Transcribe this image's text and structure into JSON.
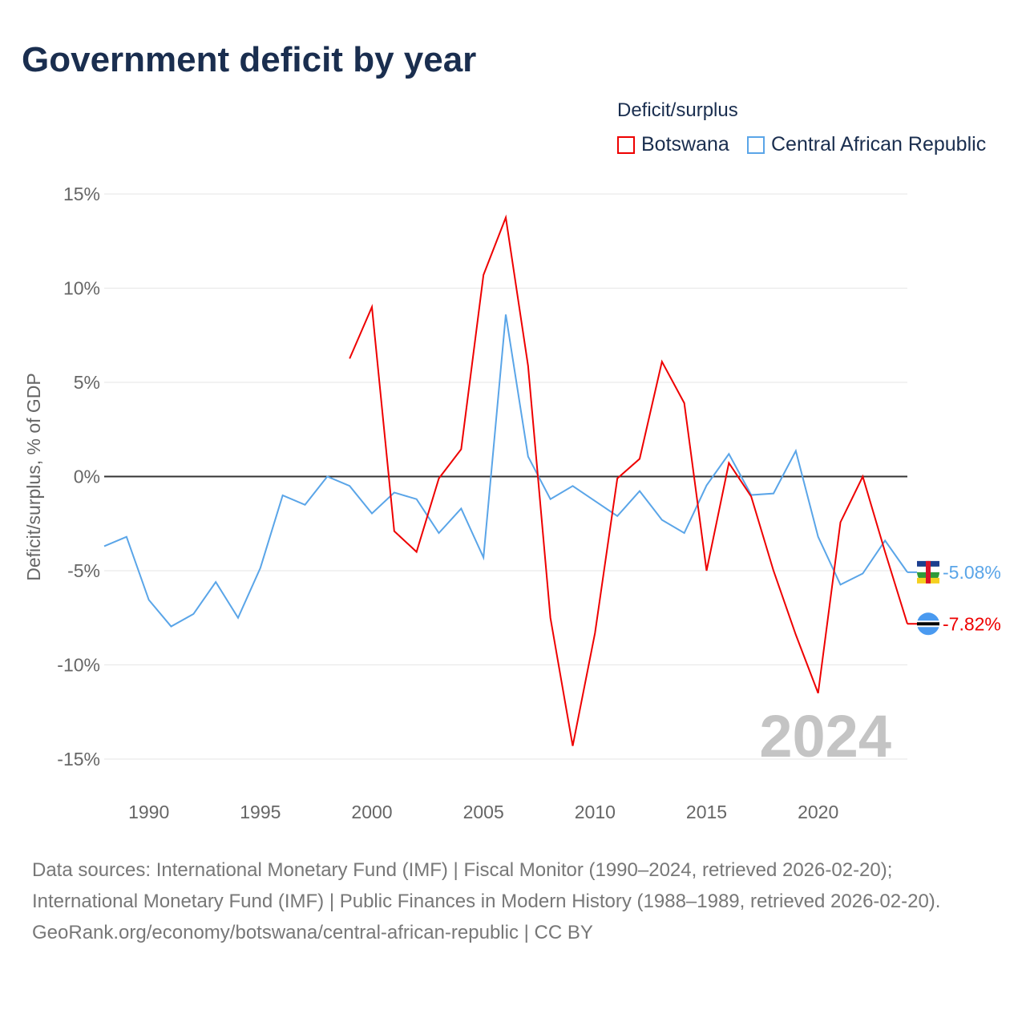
{
  "title": "Government deficit by year",
  "footer": {
    "sources": "Data sources: International Monetary Fund (IMF) | Fiscal Monitor (1990–2024, retrieved 2026-02-20); International Monetary Fund (IMF) | Public Finances in Modern History (1988–1989, retrieved 2026-02-20).",
    "credit": "GeoRank.org/economy/botswana/central-african-republic | CC BY"
  },
  "chart_data": {
    "type": "line",
    "title": "Government deficit by year",
    "ylabel": "Deficit/surplus, % of GDP",
    "xlabel": "",
    "legend_title": "Deficit/surplus",
    "legend_placement": "top-right",
    "year_watermark": "2024",
    "xlim": [
      1988,
      2024
    ],
    "ylim": [
      -15,
      15
    ],
    "x_ticks": [
      1990,
      1995,
      2000,
      2005,
      2010,
      2015,
      2020
    ],
    "y_ticks": [
      {
        "v": 15,
        "label": "15%"
      },
      {
        "v": 10,
        "label": "10%"
      },
      {
        "v": 5,
        "label": "5%"
      },
      {
        "v": 0,
        "label": "0%"
      },
      {
        "v": -5,
        "label": "-5%"
      },
      {
        "v": -10,
        "label": "-10%"
      },
      {
        "v": -15,
        "label": "-15%"
      }
    ],
    "series": [
      {
        "name": "Botswana",
        "color": "#ee0000",
        "end_label": "-7.82%",
        "flag": "botswana-flag-icon",
        "x": [
          1999,
          2000,
          2001,
          2002,
          2003,
          2004,
          2005,
          2006,
          2007,
          2008,
          2009,
          2010,
          2011,
          2012,
          2013,
          2014,
          2015,
          2016,
          2017,
          2018,
          2019,
          2020,
          2021,
          2022,
          2023,
          2024
        ],
        "values": [
          6.26,
          9.0,
          -2.9,
          -4.0,
          -0.1,
          1.45,
          10.7,
          13.75,
          5.87,
          -7.5,
          -14.3,
          -8.3,
          -0.1,
          0.94,
          6.1,
          3.9,
          -5.0,
          0.72,
          -1.06,
          -5.0,
          -8.4,
          -11.5,
          -2.43,
          0.0,
          -4.0,
          -7.82
        ]
      },
      {
        "name": "Central African Republic",
        "color": "#5aa5e8",
        "end_label": "-5.08%",
        "flag": "car-flag-icon",
        "x": [
          1988,
          1989,
          1990,
          1991,
          1992,
          1993,
          1994,
          1995,
          1996,
          1997,
          1998,
          1999,
          2000,
          2001,
          2002,
          2003,
          2004,
          2005,
          2006,
          2007,
          2008,
          2009,
          2010,
          2011,
          2012,
          2013,
          2014,
          2015,
          2016,
          2017,
          2018,
          2019,
          2020,
          2021,
          2022,
          2023,
          2024
        ],
        "values": [
          -3.7,
          -3.2,
          -6.55,
          -7.96,
          -7.3,
          -5.6,
          -7.5,
          -4.85,
          -1.0,
          -1.5,
          0.0,
          -0.5,
          -1.96,
          -0.85,
          -1.2,
          -3.0,
          -1.7,
          -4.3,
          8.6,
          1.06,
          -1.2,
          -0.5,
          -1.3,
          -2.1,
          -0.77,
          -2.3,
          -3.0,
          -0.47,
          1.2,
          -0.98,
          -0.9,
          1.36,
          -3.2,
          -5.74,
          -5.15,
          -3.4,
          -5.08
        ]
      }
    ]
  }
}
